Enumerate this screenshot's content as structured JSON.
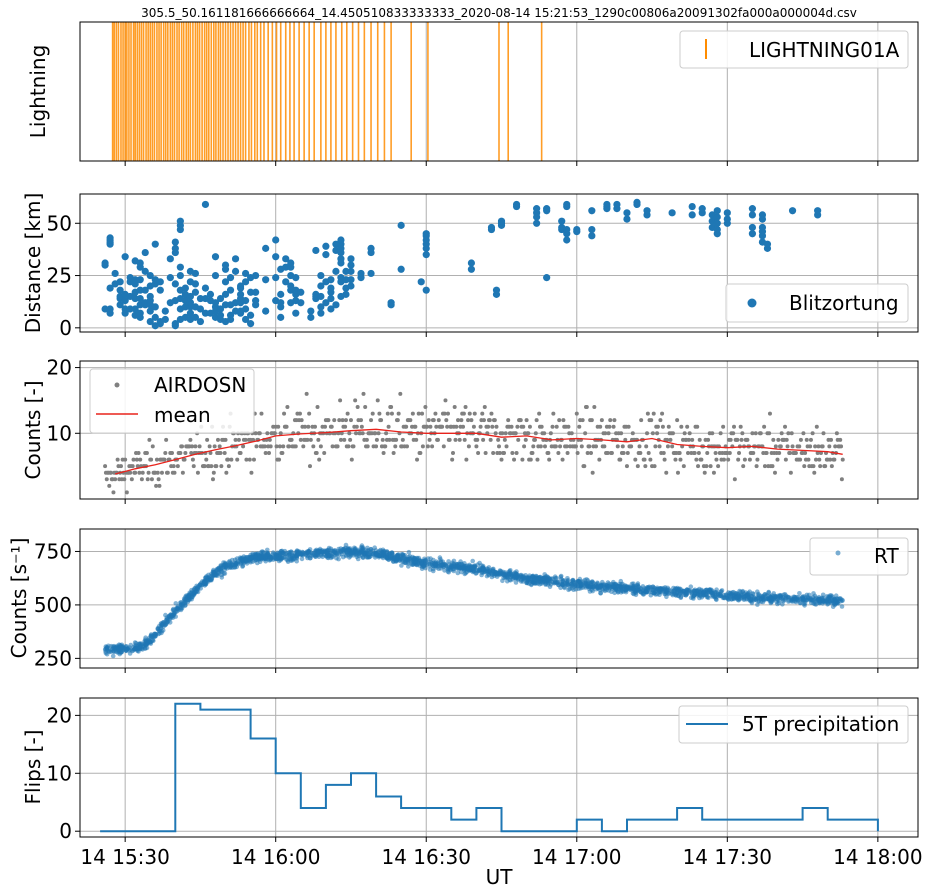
{
  "figure": {
    "title": "305.5_50.161181666666664_14.450510833333333_2020-08-14 15:21:53_1290c00806a20091302fa000a000004d.csv",
    "xlabel": "UT",
    "xlim": [
      "2020-08-14 15:21",
      "2020-08-14 18:08"
    ],
    "xticks": [
      {
        "time": "2020-08-14 15:30",
        "label": "14 15:30"
      },
      {
        "time": "2020-08-14 16:00",
        "label": "14 16:00"
      },
      {
        "time": "2020-08-14 16:30",
        "label": "14 16:30"
      },
      {
        "time": "2020-08-14 17:00",
        "label": "14 17:00"
      },
      {
        "time": "2020-08-14 17:30",
        "label": "14 17:30"
      },
      {
        "time": "2020-08-14 18:00",
        "label": "14 18:00"
      }
    ]
  },
  "colors": {
    "lightning": "#ff8c00",
    "distance": "#1f77b4",
    "airdosn": "#808080",
    "mean": "#e8231c",
    "rt": "#1f77b4",
    "precip": "#1f77b4",
    "grid": "#b0b0b0"
  },
  "chart_data": [
    {
      "type": "event",
      "id": "lightning",
      "ylabel": "Lightning",
      "legend": {
        "label": "LIGHTNING01A",
        "position": "upper right"
      },
      "grid": true,
      "events": [
        "15:27:30",
        "15:27:50",
        "15:28:15",
        "15:28:40",
        "15:29:10",
        "15:29:35",
        "15:30:00",
        "15:30:20",
        "15:30:45",
        "15:31:10",
        "15:31:40",
        "15:32:00",
        "15:32:25",
        "15:32:50",
        "15:33:15",
        "15:33:40",
        "15:34:10",
        "15:34:35",
        "15:35:00",
        "15:35:25",
        "15:35:50",
        "15:36:20",
        "15:36:45",
        "15:37:10",
        "15:37:40",
        "15:38:05",
        "15:38:30",
        "15:39:00",
        "15:39:25",
        "15:39:50",
        "15:40:20",
        "15:40:45",
        "15:41:15",
        "15:41:40",
        "15:42:10",
        "15:42:35",
        "15:43:00",
        "15:43:30",
        "15:44:00",
        "15:44:25",
        "15:44:50",
        "15:45:20",
        "15:45:50",
        "15:46:15",
        "15:46:40",
        "15:47:10",
        "15:47:40",
        "15:48:05",
        "15:48:35",
        "15:49:00",
        "15:49:30",
        "15:50:00",
        "15:50:30",
        "15:51:00",
        "15:51:30",
        "15:52:00",
        "15:52:30",
        "15:53:00",
        "15:53:30",
        "15:54:00",
        "15:54:40",
        "15:55:10",
        "15:55:50",
        "15:56:20",
        "15:57:00",
        "15:57:40",
        "15:58:30",
        "15:59:20",
        "16:00:10",
        "16:01:00",
        "16:02:00",
        "16:02:50",
        "16:03:40",
        "16:04:40",
        "16:05:40",
        "16:06:40",
        "16:07:40",
        "16:09:00",
        "16:10:00",
        "16:11:00",
        "16:12:00",
        "16:13:10",
        "16:14:10",
        "16:15:20",
        "16:16:30",
        "16:17:40",
        "16:19:00",
        "16:20:20",
        "16:21:40",
        "16:23:00",
        "16:27:00",
        "16:30:20",
        "16:44:30",
        "16:46:20",
        "16:53:00"
      ]
    },
    {
      "type": "scatter",
      "id": "distance",
      "ylabel": "Distance [km]",
      "ylim": [
        -2,
        64
      ],
      "yticks": [
        0,
        25,
        50
      ],
      "grid": true,
      "legend": {
        "label": "Blitzortung",
        "position": "lower right"
      },
      "groups": [
        {
          "t": "15:26:00",
          "d": [
            9,
            30,
            31
          ]
        },
        {
          "t": "15:27:00",
          "d": [
            7,
            9,
            19,
            40,
            41,
            42,
            43
          ]
        },
        {
          "t": "15:28:00",
          "d": [
            21,
            26
          ]
        },
        {
          "t": "15:29:00",
          "d": [
            11,
            14,
            15,
            18,
            22
          ]
        },
        {
          "t": "15:30:00",
          "d": [
            7,
            9,
            13,
            16,
            34
          ]
        },
        {
          "t": "15:31:00",
          "d": [
            9,
            15,
            22,
            24
          ]
        },
        {
          "t": "15:32:00",
          "d": [
            6,
            9,
            14,
            17,
            21,
            23,
            32
          ]
        },
        {
          "t": "15:33:00",
          "d": [
            5,
            7,
            11,
            14,
            18,
            23,
            29,
            31
          ]
        },
        {
          "t": "15:34:00",
          "d": [
            11,
            12,
            18,
            27,
            36
          ]
        },
        {
          "t": "15:35:00",
          "d": [
            3,
            8,
            11,
            13,
            15,
            20,
            25
          ]
        },
        {
          "t": "15:36:00",
          "d": [
            1,
            5,
            10,
            21,
            23,
            40
          ]
        },
        {
          "t": "15:37:00",
          "d": [
            2,
            3,
            18,
            22
          ]
        },
        {
          "t": "15:38:00",
          "d": [
            4,
            8
          ]
        },
        {
          "t": "15:39:00",
          "d": [
            12,
            24,
            33
          ]
        },
        {
          "t": "15:40:00",
          "d": [
            1,
            2,
            13,
            21,
            36,
            38,
            41
          ]
        },
        {
          "t": "15:41:00",
          "d": [
            4,
            9,
            14,
            18,
            25,
            29,
            47,
            49,
            51
          ]
        },
        {
          "t": "15:42:00",
          "d": [
            5,
            10,
            13,
            16,
            19
          ]
        },
        {
          "t": "15:43:00",
          "d": [
            4,
            7,
            10,
            12,
            15,
            22,
            27
          ]
        },
        {
          "t": "15:44:00",
          "d": [
            5,
            10,
            17,
            21,
            26
          ]
        },
        {
          "t": "15:45:00",
          "d": [
            3,
            9,
            14
          ]
        },
        {
          "t": "15:46:00",
          "d": [
            7,
            14,
            19,
            59
          ]
        },
        {
          "t": "15:47:00",
          "d": [
            7,
            13,
            16
          ]
        },
        {
          "t": "15:48:00",
          "d": [
            5,
            8,
            10,
            12,
            25,
            34
          ]
        },
        {
          "t": "15:49:00",
          "d": [
            4,
            6,
            9,
            14
          ]
        },
        {
          "t": "15:50:00",
          "d": [
            3,
            11,
            16,
            22,
            28,
            30
          ]
        },
        {
          "t": "15:51:00",
          "d": [
            4,
            6,
            11,
            18,
            24
          ]
        },
        {
          "t": "15:52:00",
          "d": [
            8,
            12,
            27,
            33
          ]
        },
        {
          "t": "15:53:00",
          "d": [
            7,
            8,
            12,
            14,
            16,
            19,
            20
          ]
        },
        {
          "t": "15:54:00",
          "d": [
            4,
            9,
            13,
            22,
            26
          ]
        },
        {
          "t": "15:55:00",
          "d": [
            2,
            6,
            17,
            24
          ]
        },
        {
          "t": "15:56:00",
          "d": [
            11,
            13,
            17,
            25
          ]
        },
        {
          "t": "15:58:00",
          "d": [
            8,
            23,
            38
          ]
        },
        {
          "t": "16:00:00",
          "d": [
            13,
            24,
            34,
            42
          ]
        },
        {
          "t": "16:01:00",
          "d": [
            5,
            10,
            12,
            16,
            28
          ]
        },
        {
          "t": "16:02:00",
          "d": [
            22,
            29,
            33
          ]
        },
        {
          "t": "16:03:00",
          "d": [
            12,
            18,
            20,
            25,
            29,
            31
          ]
        },
        {
          "t": "16:04:00",
          "d": [
            7,
            13,
            16,
            18,
            24
          ]
        },
        {
          "t": "16:05:00",
          "d": [
            12,
            17
          ]
        },
        {
          "t": "16:07:00",
          "d": [
            5,
            8
          ]
        },
        {
          "t": "16:08:00",
          "d": [
            14,
            15,
            16,
            37
          ]
        },
        {
          "t": "16:09:00",
          "d": [
            7,
            10,
            15,
            20,
            25
          ]
        },
        {
          "t": "16:10:00",
          "d": [
            12,
            22,
            35,
            39
          ]
        },
        {
          "t": "16:11:00",
          "d": [
            9,
            14,
            17,
            19,
            23
          ]
        },
        {
          "t": "16:12:00",
          "d": [
            11,
            27,
            37,
            40
          ]
        },
        {
          "t": "16:13:00",
          "d": [
            15,
            22,
            24,
            31,
            33,
            36,
            38,
            40,
            42
          ]
        },
        {
          "t": "16:14:00",
          "d": [
            16,
            19,
            23,
            27
          ]
        },
        {
          "t": "16:15:00",
          "d": [
            20,
            23,
            27,
            30,
            33
          ]
        },
        {
          "t": "16:17:00",
          "d": [
            24,
            26
          ]
        },
        {
          "t": "16:19:00",
          "d": [
            26,
            36,
            38
          ]
        },
        {
          "t": "16:23:00",
          "d": [
            11,
            12
          ]
        },
        {
          "t": "16:25:00",
          "d": [
            28,
            49
          ]
        },
        {
          "t": "16:29:00",
          "d": [
            22
          ]
        },
        {
          "t": "16:30:00",
          "d": [
            18,
            35,
            38,
            40,
            42,
            44,
            45
          ]
        },
        {
          "t": "16:39:00",
          "d": [
            28,
            31
          ]
        },
        {
          "t": "16:43:00",
          "d": [
            47,
            48
          ]
        },
        {
          "t": "16:44:00",
          "d": [
            16,
            18
          ]
        },
        {
          "t": "16:45:00",
          "d": [
            49,
            50,
            51
          ]
        },
        {
          "t": "16:48:00",
          "d": [
            58,
            59
          ]
        },
        {
          "t": "16:52:00",
          "d": [
            50,
            53,
            55,
            57
          ]
        },
        {
          "t": "16:54:00",
          "d": [
            24,
            56,
            57
          ]
        },
        {
          "t": "16:57:00",
          "d": [
            47,
            48,
            51
          ]
        },
        {
          "t": "16:58:00",
          "d": [
            42,
            45,
            47,
            58,
            59
          ]
        },
        {
          "t": "17:00:00",
          "d": [
            46,
            47
          ]
        },
        {
          "t": "17:03:00",
          "d": [
            44,
            47,
            56
          ]
        },
        {
          "t": "17:06:00",
          "d": [
            57,
            58,
            59
          ]
        },
        {
          "t": "17:08:00",
          "d": [
            57,
            59
          ]
        },
        {
          "t": "17:10:00",
          "d": [
            52,
            55
          ]
        },
        {
          "t": "17:12:00",
          "d": [
            59,
            60
          ]
        },
        {
          "t": "17:14:00",
          "d": [
            54,
            56
          ]
        },
        {
          "t": "17:19:00",
          "d": [
            55
          ]
        },
        {
          "t": "17:23:00",
          "d": [
            54,
            58
          ]
        },
        {
          "t": "17:25:00",
          "d": [
            55,
            57
          ]
        },
        {
          "t": "17:27:00",
          "d": [
            48,
            51,
            54
          ]
        },
        {
          "t": "17:28:00",
          "d": [
            45,
            47,
            50,
            53,
            56
          ]
        },
        {
          "t": "17:30:00",
          "d": [
            50,
            52,
            55
          ]
        },
        {
          "t": "17:35:00",
          "d": [
            45,
            48,
            54,
            57
          ]
        },
        {
          "t": "17:37:00",
          "d": [
            41,
            44,
            46,
            48,
            52,
            54
          ]
        },
        {
          "t": "17:38:00",
          "d": [
            38,
            40
          ]
        },
        {
          "t": "17:43:00",
          "d": [
            56
          ]
        },
        {
          "t": "17:48:00",
          "d": [
            54,
            56
          ]
        }
      ]
    },
    {
      "type": "scatter",
      "id": "airdosn",
      "ylabel": "Counts [-]",
      "ylim": [
        0,
        21
      ],
      "yticks": [
        10,
        20
      ],
      "grid": true,
      "legend": {
        "labels": [
          "AIRDOSN",
          "mean"
        ],
        "position": "upper left"
      },
      "time_range": [
        "15:26:00",
        "17:53:00"
      ],
      "mean": [
        {
          "t": "15:28:00",
          "v": 3.8
        },
        {
          "t": "15:32:00",
          "v": 4.6
        },
        {
          "t": "15:36:00",
          "v": 5.2
        },
        {
          "t": "15:40:00",
          "v": 6.0
        },
        {
          "t": "15:44:00",
          "v": 6.8
        },
        {
          "t": "15:48:00",
          "v": 7.5
        },
        {
          "t": "15:52:00",
          "v": 8.1
        },
        {
          "t": "15:56:00",
          "v": 8.8
        },
        {
          "t": "16:00:00",
          "v": 9.6
        },
        {
          "t": "16:05:00",
          "v": 9.9
        },
        {
          "t": "16:10:00",
          "v": 10.1
        },
        {
          "t": "16:15:00",
          "v": 10.4
        },
        {
          "t": "16:20:00",
          "v": 10.6
        },
        {
          "t": "16:25:00",
          "v": 10.2
        },
        {
          "t": "16:30:00",
          "v": 10.0
        },
        {
          "t": "16:40:00",
          "v": 10.0
        },
        {
          "t": "16:45:00",
          "v": 9.4
        },
        {
          "t": "16:50:00",
          "v": 9.6
        },
        {
          "t": "16:55:00",
          "v": 9.0
        },
        {
          "t": "17:00:00",
          "v": 9.2
        },
        {
          "t": "17:05:00",
          "v": 9.0
        },
        {
          "t": "17:10:00",
          "v": 8.7
        },
        {
          "t": "17:15:00",
          "v": 9.2
        },
        {
          "t": "17:20:00",
          "v": 8.3
        },
        {
          "t": "17:25:00",
          "v": 8.0
        },
        {
          "t": "17:30:00",
          "v": 7.8
        },
        {
          "t": "17:35:00",
          "v": 8.0
        },
        {
          "t": "17:40:00",
          "v": 7.6
        },
        {
          "t": "17:45:00",
          "v": 7.4
        },
        {
          "t": "17:50:00",
          "v": 7.2
        },
        {
          "t": "17:53:00",
          "v": 6.8
        }
      ]
    },
    {
      "type": "scatter",
      "id": "rt",
      "ylabel": "Counts [s⁻¹]",
      "ylim": [
        205,
        855
      ],
      "yticks": [
        250,
        500,
        750
      ],
      "grid": true,
      "legend": {
        "label": "RT",
        "position": "upper right"
      },
      "trend": [
        {
          "t": "15:26:00",
          "v": 295
        },
        {
          "t": "15:33:00",
          "v": 300
        },
        {
          "t": "15:35:00",
          "v": 330
        },
        {
          "t": "15:38:00",
          "v": 420
        },
        {
          "t": "15:42:00",
          "v": 520
        },
        {
          "t": "15:46:00",
          "v": 610
        },
        {
          "t": "15:50:00",
          "v": 680
        },
        {
          "t": "15:55:00",
          "v": 720
        },
        {
          "t": "16:05:00",
          "v": 735
        },
        {
          "t": "16:15:00",
          "v": 750
        },
        {
          "t": "16:20:00",
          "v": 740
        },
        {
          "t": "16:30:00",
          "v": 695
        },
        {
          "t": "16:40:00",
          "v": 665
        },
        {
          "t": "16:50:00",
          "v": 625
        },
        {
          "t": "17:00:00",
          "v": 595
        },
        {
          "t": "17:15:00",
          "v": 570
        },
        {
          "t": "17:30:00",
          "v": 545
        },
        {
          "t": "17:45:00",
          "v": 525
        },
        {
          "t": "17:53:00",
          "v": 520
        }
      ]
    },
    {
      "type": "line",
      "id": "precip",
      "ylabel": "Flips [-]",
      "ylim": [
        -1,
        23
      ],
      "yticks": [
        0,
        10,
        20
      ],
      "grid": true,
      "step": "post",
      "legend": {
        "label": "5T precipitation",
        "position": "upper right"
      },
      "x": [
        "15:25",
        "15:30",
        "15:35",
        "15:40",
        "15:45",
        "15:50",
        "15:55",
        "16:00",
        "16:05",
        "16:10",
        "16:15",
        "16:20",
        "16:25",
        "16:30",
        "16:35",
        "16:40",
        "16:45",
        "16:50",
        "16:55",
        "17:00",
        "17:05",
        "17:10",
        "17:15",
        "17:20",
        "17:25",
        "17:30",
        "17:35",
        "17:40",
        "17:45",
        "17:50",
        "17:55",
        "18:00"
      ],
      "y": [
        0,
        0,
        0,
        22,
        21,
        21,
        16,
        10,
        4,
        8,
        10,
        6,
        4,
        4,
        2,
        4,
        0,
        0,
        0,
        2,
        0,
        2,
        2,
        4,
        2,
        2,
        2,
        2,
        4,
        2,
        2,
        0
      ]
    }
  ]
}
